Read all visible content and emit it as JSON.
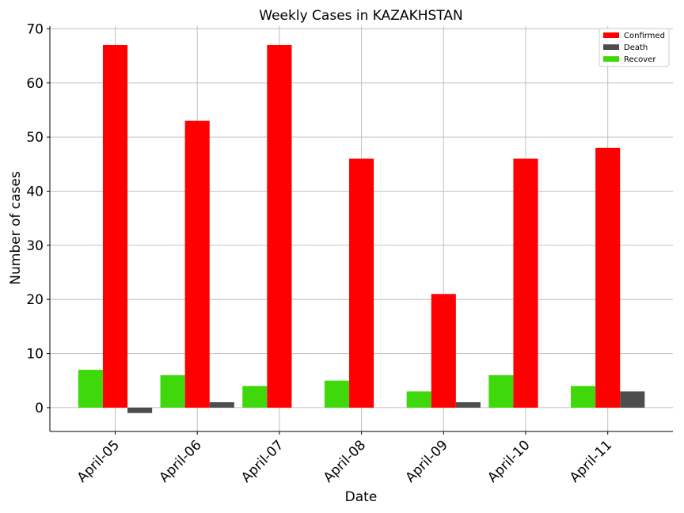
{
  "chart_data": {
    "type": "bar",
    "title": "Weekly Cases in KAZAKHSTAN",
    "xlabel": "Date",
    "ylabel": "Number of cases",
    "categories": [
      "April-05",
      "April-06",
      "April-07",
      "April-08",
      "April-09",
      "April-10",
      "April-11"
    ],
    "series": [
      {
        "name": "Recover",
        "color": "#3fd90b",
        "values": [
          7,
          6,
          4,
          5,
          3,
          6,
          4
        ]
      },
      {
        "name": "Confirmed",
        "color": "#ff0000",
        "values": [
          67,
          53,
          67,
          46,
          21,
          46,
          48
        ]
      },
      {
        "name": "Death",
        "color": "#4d4d4d",
        "values": [
          -1,
          1,
          0,
          0,
          1,
          0,
          3
        ]
      }
    ],
    "legend_order": [
      "Confirmed",
      "Death",
      "Recover"
    ],
    "ylim": [
      -4.4,
      70.5
    ],
    "yticks": [
      0,
      10,
      20,
      30,
      40,
      50,
      60,
      70
    ],
    "grid": true,
    "legend_position": "top-right",
    "tick_label_rotation": 45
  }
}
